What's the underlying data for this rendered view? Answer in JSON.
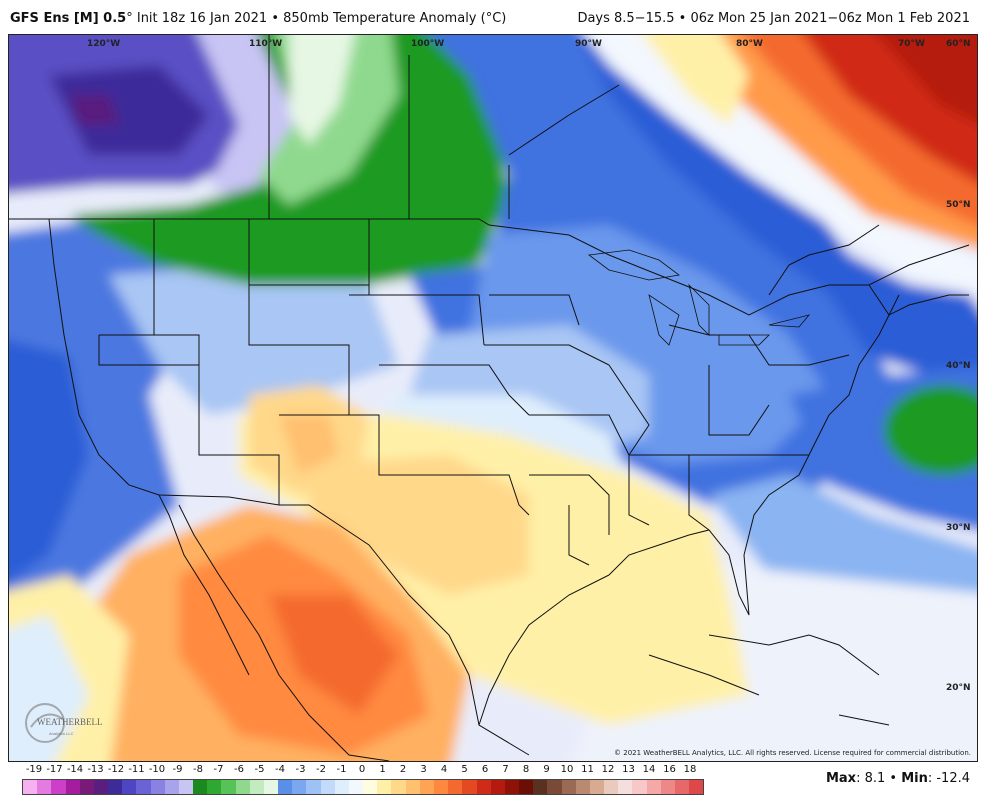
{
  "header": {
    "model": "GFS Ens [M] 0.5",
    "deg": "°",
    "init": "Init 18z 16 Jan 2021 • 850mb Temperature Anomaly (°C)",
    "valid": "Days 8.5−15.5 • 06z Mon 25 Jan 2021−06z Mon 1 Feb 2021"
  },
  "map": {
    "lon_labels": [
      "120°W",
      "110°W",
      "100°W",
      "90°W",
      "80°W",
      "70°W",
      "60°N"
    ],
    "lat_labels": [
      "50°N",
      "40°N",
      "30°N",
      "20°N"
    ],
    "copyright": "© 2021 WeatherBELL Analytics, LLC. All rights reserved. License required for commercial distribution.",
    "logo_text": "WEATHERBELL",
    "logo_sub": "Analytics LLC"
  },
  "colorbar": {
    "ticks": [
      "-19",
      "-17",
      "-14",
      "-13",
      "-12",
      "-11",
      "-10",
      "-9",
      "-8",
      "-7",
      "-6",
      "-5",
      "-4",
      "-3",
      "-2",
      "-1",
      "0",
      "1",
      "2",
      "3",
      "4",
      "5",
      "6",
      "7",
      "8",
      "9",
      "10",
      "11",
      "12",
      "13",
      "14",
      "16",
      "18"
    ],
    "colors": [
      "#f7b0f0",
      "#e37be0",
      "#cc3fc9",
      "#a51c9f",
      "#7a1a78",
      "#5a1e7e",
      "#3d2b9a",
      "#4d45c2",
      "#6a63d6",
      "#8a82e2",
      "#a9a3ec",
      "#c8c4f4",
      "#1a8a1f",
      "#2fa832",
      "#57c257",
      "#8fd98e",
      "#c2ecc0",
      "#e6f7e4",
      "#5a8fe8",
      "#7aa7f0",
      "#9fc2f6",
      "#c3dafa",
      "#dfeefc",
      "#f3f7fe",
      "#fffde0",
      "#fff0a8",
      "#ffd88a",
      "#ffc070",
      "#ffa455",
      "#ff8840",
      "#f46a2e",
      "#e44a22",
      "#d02a18",
      "#b51a10",
      "#8e1208",
      "#6a0e06",
      "#5a3020",
      "#7a4a36",
      "#9a6a52",
      "#ba8a70",
      "#d8aa92",
      "#eacabc",
      "#f4dede",
      "#f8c8c8",
      "#f4a8a8",
      "#ee8888",
      "#e66868",
      "#de4848"
    ]
  },
  "stats": {
    "max_label": "Max",
    "max_value": ": 8.1",
    "sep": " • ",
    "min_label": "Min",
    "min_value": ": -12.4"
  }
}
